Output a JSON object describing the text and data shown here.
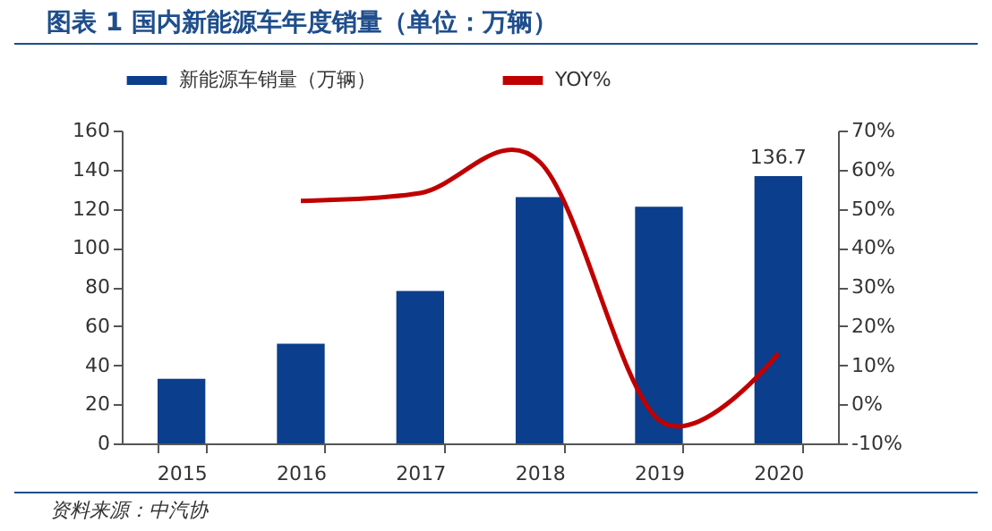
{
  "chart_data": {
    "type": "bar",
    "title": "图表 1   国内新能源车年度销量（单位：万辆）",
    "categories": [
      "2015",
      "2016",
      "2017",
      "2018",
      "2019",
      "2020"
    ],
    "series": [
      {
        "name": "新能源车销量（万辆）",
        "color": "#0b3e8c",
        "values": [
          33,
          51,
          78,
          126,
          121,
          136.7
        ],
        "value_labels": [
          null,
          null,
          null,
          null,
          null,
          "136.7"
        ]
      },
      {
        "name": "YOY%",
        "type": "line",
        "axis": "y2",
        "color": "#c00000",
        "values": [
          null,
          52,
          54,
          62,
          -4,
          13
        ]
      }
    ],
    "ylim": [
      0,
      160
    ],
    "yticks": [
      0,
      20,
      40,
      60,
      80,
      100,
      120,
      140,
      160
    ],
    "y2lim": [
      -10,
      70
    ],
    "y2ticks": [
      {
        "value": -10,
        "label": "-10%"
      },
      {
        "value": 0,
        "label": "0%"
      },
      {
        "value": 10,
        "label": "10%"
      },
      {
        "value": 20,
        "label": "20%"
      },
      {
        "value": 30,
        "label": "30%"
      },
      {
        "value": 40,
        "label": "40%"
      },
      {
        "value": 50,
        "label": "50%"
      },
      {
        "value": 60,
        "label": "60%"
      },
      {
        "value": 70,
        "label": "70%"
      }
    ],
    "legend": "top",
    "grid": false,
    "annotations": [
      "资料来源：中汽协"
    ]
  }
}
